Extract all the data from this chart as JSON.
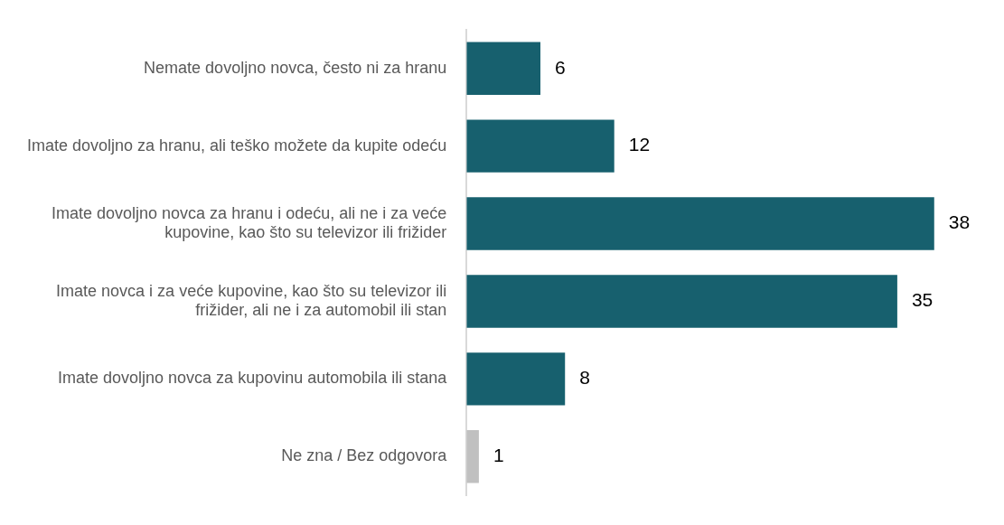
{
  "chart_data": {
    "type": "bar",
    "orientation": "horizontal",
    "categories": [
      "Nemate dovoljno novca, često ni za hranu",
      "Imate dovoljno za hranu, ali teško možete da kupite odeću",
      "Imate dovoljno novca za hranu i odeću, ali ne i za veće kupovine, kao što su televizor ili frižider",
      "Imate novca i za veće kupovine, kao što su televizor ili frižider, ali ne i za automobil ili stan",
      "Imate dovoljno novca za kupovinu automobila ili stana",
      "Ne zna / Bez odgovora"
    ],
    "values": [
      6,
      12,
      38,
      35,
      8,
      1
    ],
    "colors": [
      "#17606e",
      "#17606e",
      "#17606e",
      "#17606e",
      "#17606e",
      "#c0c0c0"
    ],
    "data_labels": true
  }
}
